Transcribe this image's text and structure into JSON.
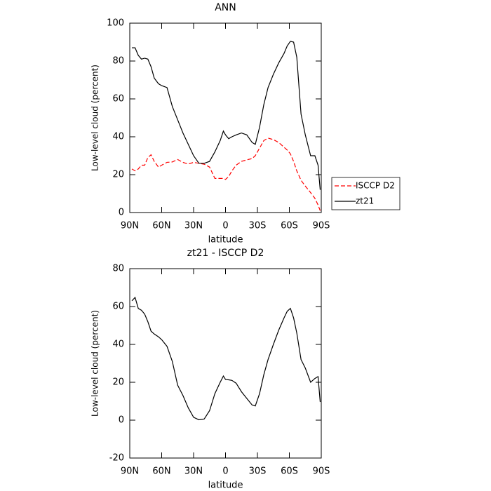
{
  "chart_data": [
    {
      "type": "line",
      "title": "ANN",
      "xlabel": "latitude",
      "ylabel": "Low-level cloud (percent)",
      "x": [
        88,
        85,
        82,
        79,
        76,
        73,
        70,
        67,
        63,
        60,
        55,
        50,
        45,
        40,
        35,
        30,
        25,
        20,
        15,
        10,
        5,
        2,
        0,
        -3,
        -6,
        -10,
        -15,
        -20,
        -25,
        -28,
        -32,
        -36,
        -40,
        -45,
        -50,
        -55,
        -58,
        -61,
        -64,
        -67,
        -71,
        -75,
        -80,
        -84,
        -87,
        -89
      ],
      "series": [
        {
          "name": "ISCCP D2",
          "color": "#ff0000",
          "style": "dashed",
          "values": [
            23,
            22,
            23,
            25,
            25,
            29,
            30.5,
            27,
            24,
            25,
            26.5,
            26.7,
            28,
            26.5,
            25.6,
            26.5,
            26,
            25.5,
            24,
            18,
            18,
            18,
            17.5,
            19,
            22,
            25,
            27,
            27.8,
            28.5,
            30,
            34,
            38,
            39.3,
            38.5,
            37,
            34.5,
            33,
            31,
            27,
            22,
            17,
            14,
            10.5,
            7.5,
            4,
            1
          ]
        },
        {
          "name": "zt21",
          "color": "#000000",
          "style": "solid",
          "values": [
            87,
            87,
            83,
            81,
            81.5,
            81,
            77,
            71,
            68,
            67,
            66,
            56,
            49,
            42,
            36,
            30,
            26,
            26,
            27,
            32,
            38,
            43,
            41,
            39,
            40,
            41,
            42,
            41,
            37,
            36,
            45,
            57,
            66,
            73,
            79,
            84,
            88,
            90.4,
            90,
            82,
            52,
            41,
            30,
            30,
            25,
            12
          ]
        }
      ],
      "xlim": [
        90,
        -90
      ],
      "xticks": [
        {
          "value": 90,
          "label": "90N"
        },
        {
          "value": 60,
          "label": "60N"
        },
        {
          "value": 30,
          "label": "30N"
        },
        0,
        {
          "value": -30,
          "label": "30S"
        },
        {
          "value": -60,
          "label": "60S"
        },
        {
          "value": -90,
          "label": "90S"
        }
      ],
      "ylim": [
        0,
        100
      ],
      "yticks": [
        0,
        20,
        40,
        60,
        80,
        100
      ],
      "legend": "right"
    },
    {
      "type": "line",
      "title": "zt21 - ISCCP D2",
      "xlabel": "latitude",
      "ylabel": "Low-level cloud (percent)",
      "x": [
        88,
        85,
        82,
        79,
        76,
        73,
        70,
        67,
        63,
        60,
        55,
        50,
        45,
        40,
        35,
        30,
        25,
        20,
        15,
        10,
        5,
        2,
        0,
        -3,
        -6,
        -10,
        -15,
        -20,
        -25,
        -28,
        -32,
        -36,
        -40,
        -45,
        -50,
        -55,
        -58,
        -61,
        -64,
        -67,
        -71,
        -75,
        -80,
        -84,
        -87,
        -89
      ],
      "series": [
        {
          "color": "#000000",
          "style": "solid",
          "values": [
            63,
            64.8,
            59,
            58,
            56,
            52,
            47,
            45.5,
            44,
            42.5,
            39,
            31,
            18.5,
            13,
            6.5,
            1.5,
            0.2,
            0.6,
            5,
            14,
            20,
            23.3,
            21.5,
            21.3,
            21,
            19.5,
            15,
            11.5,
            8,
            7.5,
            14,
            24,
            32,
            40,
            47.5,
            54,
            57.5,
            59,
            54,
            46,
            32,
            27.5,
            20,
            22,
            23,
            9.6
          ]
        }
      ],
      "xlim": [
        90,
        -90
      ],
      "xticks": [
        {
          "value": 90,
          "label": "90N"
        },
        {
          "value": 60,
          "label": "60N"
        },
        {
          "value": 30,
          "label": "30N"
        },
        0,
        {
          "value": -30,
          "label": "30S"
        },
        {
          "value": -60,
          "label": "60S"
        },
        {
          "value": -90,
          "label": "90S"
        }
      ],
      "ylim": [
        -20,
        80
      ],
      "yticks": [
        -20,
        0,
        20,
        40,
        60,
        80
      ]
    }
  ]
}
